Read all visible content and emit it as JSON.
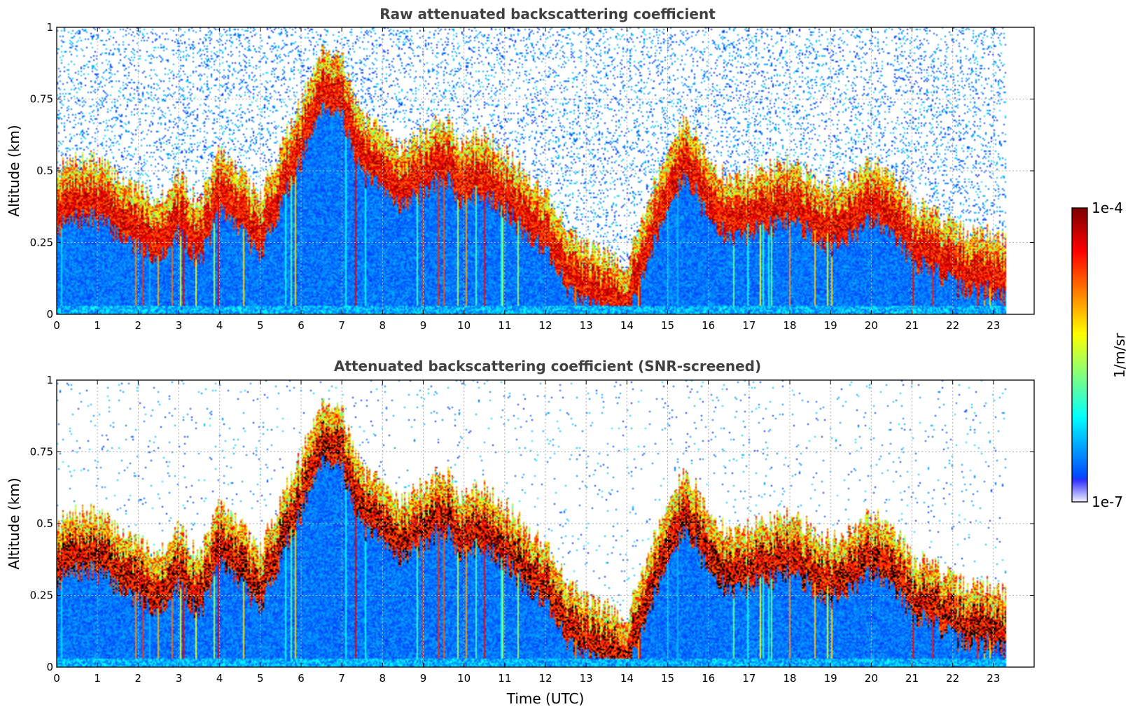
{
  "chart_data": [
    {
      "type": "heatmap",
      "title": "Raw attenuated backscattering coefficient",
      "xlabel": "",
      "ylabel": "Altitude (km)",
      "xlim": [
        0,
        24
      ],
      "ylim": [
        0,
        1
      ],
      "x_ticks": [
        "0",
        "1",
        "2",
        "3",
        "4",
        "5",
        "6",
        "7",
        "8",
        "9",
        "10",
        "11",
        "12",
        "13",
        "14",
        "15",
        "16",
        "17",
        "18",
        "19",
        "20",
        "21",
        "22",
        "23"
      ],
      "y_ticks": [
        "0",
        "0.25",
        "0.5",
        "0.75",
        "1"
      ],
      "grid": true,
      "screened": false,
      "colormap": "jet",
      "data_extent_hours": [
        0,
        23.3
      ],
      "layer_top_km": [
        [
          0,
          0.42
        ],
        [
          0.5,
          0.45
        ],
        [
          1,
          0.45
        ],
        [
          1.5,
          0.4
        ],
        [
          2,
          0.35
        ],
        [
          2.5,
          0.32
        ],
        [
          3,
          0.4
        ],
        [
          3.5,
          0.3
        ],
        [
          4,
          0.48
        ],
        [
          4.5,
          0.42
        ],
        [
          5,
          0.32
        ],
        [
          5.5,
          0.5
        ],
        [
          6,
          0.65
        ],
        [
          6.5,
          0.85
        ],
        [
          7,
          0.82
        ],
        [
          7.5,
          0.6
        ],
        [
          8,
          0.55
        ],
        [
          8.5,
          0.5
        ],
        [
          9,
          0.55
        ],
        [
          9.5,
          0.6
        ],
        [
          10,
          0.5
        ],
        [
          10.5,
          0.55
        ],
        [
          11,
          0.48
        ],
        [
          11.5,
          0.4
        ],
        [
          12,
          0.35
        ],
        [
          12.5,
          0.22
        ],
        [
          13,
          0.15
        ],
        [
          14,
          0.1
        ],
        [
          15,
          0.5
        ],
        [
          15.5,
          0.6
        ],
        [
          16,
          0.45
        ],
        [
          16.5,
          0.38
        ],
        [
          17,
          0.4
        ],
        [
          17.5,
          0.42
        ],
        [
          18,
          0.45
        ],
        [
          18.5,
          0.4
        ],
        [
          19,
          0.36
        ],
        [
          19.5,
          0.38
        ],
        [
          20,
          0.45
        ],
        [
          20.5,
          0.42
        ],
        [
          21,
          0.3
        ],
        [
          21.5,
          0.28
        ],
        [
          22,
          0.22
        ],
        [
          22.5,
          0.2
        ],
        [
          23,
          0.2
        ],
        [
          23.3,
          0.18
        ]
      ]
    },
    {
      "type": "heatmap",
      "title": "Attenuated backscattering coefficient (SNR-screened)",
      "xlabel": "Time (UTC)",
      "ylabel": "Altitude (km)",
      "xlim": [
        0,
        24
      ],
      "ylim": [
        0,
        1
      ],
      "x_ticks": [
        "0",
        "1",
        "2",
        "3",
        "4",
        "5",
        "6",
        "7",
        "8",
        "9",
        "10",
        "11",
        "12",
        "13",
        "14",
        "15",
        "16",
        "17",
        "18",
        "19",
        "20",
        "21",
        "22",
        "23"
      ],
      "y_ticks": [
        "0",
        "0.25",
        "0.5",
        "0.75",
        "1"
      ],
      "grid": true,
      "screened": true,
      "colormap": "jet",
      "data_extent_hours": [
        0,
        23.3
      ],
      "layer_top_km": [
        [
          0,
          0.42
        ],
        [
          0.5,
          0.45
        ],
        [
          1,
          0.45
        ],
        [
          1.5,
          0.4
        ],
        [
          2,
          0.35
        ],
        [
          2.5,
          0.32
        ],
        [
          3,
          0.4
        ],
        [
          3.5,
          0.3
        ],
        [
          4,
          0.48
        ],
        [
          4.5,
          0.42
        ],
        [
          5,
          0.32
        ],
        [
          5.5,
          0.5
        ],
        [
          6,
          0.65
        ],
        [
          6.5,
          0.85
        ],
        [
          7,
          0.82
        ],
        [
          7.5,
          0.6
        ],
        [
          8,
          0.55
        ],
        [
          8.5,
          0.5
        ],
        [
          9,
          0.55
        ],
        [
          9.5,
          0.6
        ],
        [
          10,
          0.5
        ],
        [
          10.5,
          0.55
        ],
        [
          11,
          0.48
        ],
        [
          11.5,
          0.4
        ],
        [
          12,
          0.35
        ],
        [
          12.5,
          0.22
        ],
        [
          13,
          0.15
        ],
        [
          14,
          0.1
        ],
        [
          15,
          0.5
        ],
        [
          15.5,
          0.6
        ],
        [
          16,
          0.45
        ],
        [
          16.5,
          0.38
        ],
        [
          17,
          0.4
        ],
        [
          17.5,
          0.42
        ],
        [
          18,
          0.45
        ],
        [
          18.5,
          0.4
        ],
        [
          19,
          0.36
        ],
        [
          19.5,
          0.38
        ],
        [
          20,
          0.45
        ],
        [
          20.5,
          0.42
        ],
        [
          21,
          0.3
        ],
        [
          21.5,
          0.28
        ],
        [
          22,
          0.22
        ],
        [
          22.5,
          0.2
        ],
        [
          23,
          0.2
        ],
        [
          23.3,
          0.18
        ]
      ]
    }
  ],
  "colorbar": {
    "max_label": "1e-4",
    "min_label": "1e-7",
    "unit_label": "1/m/sr",
    "colormap": "jet"
  }
}
